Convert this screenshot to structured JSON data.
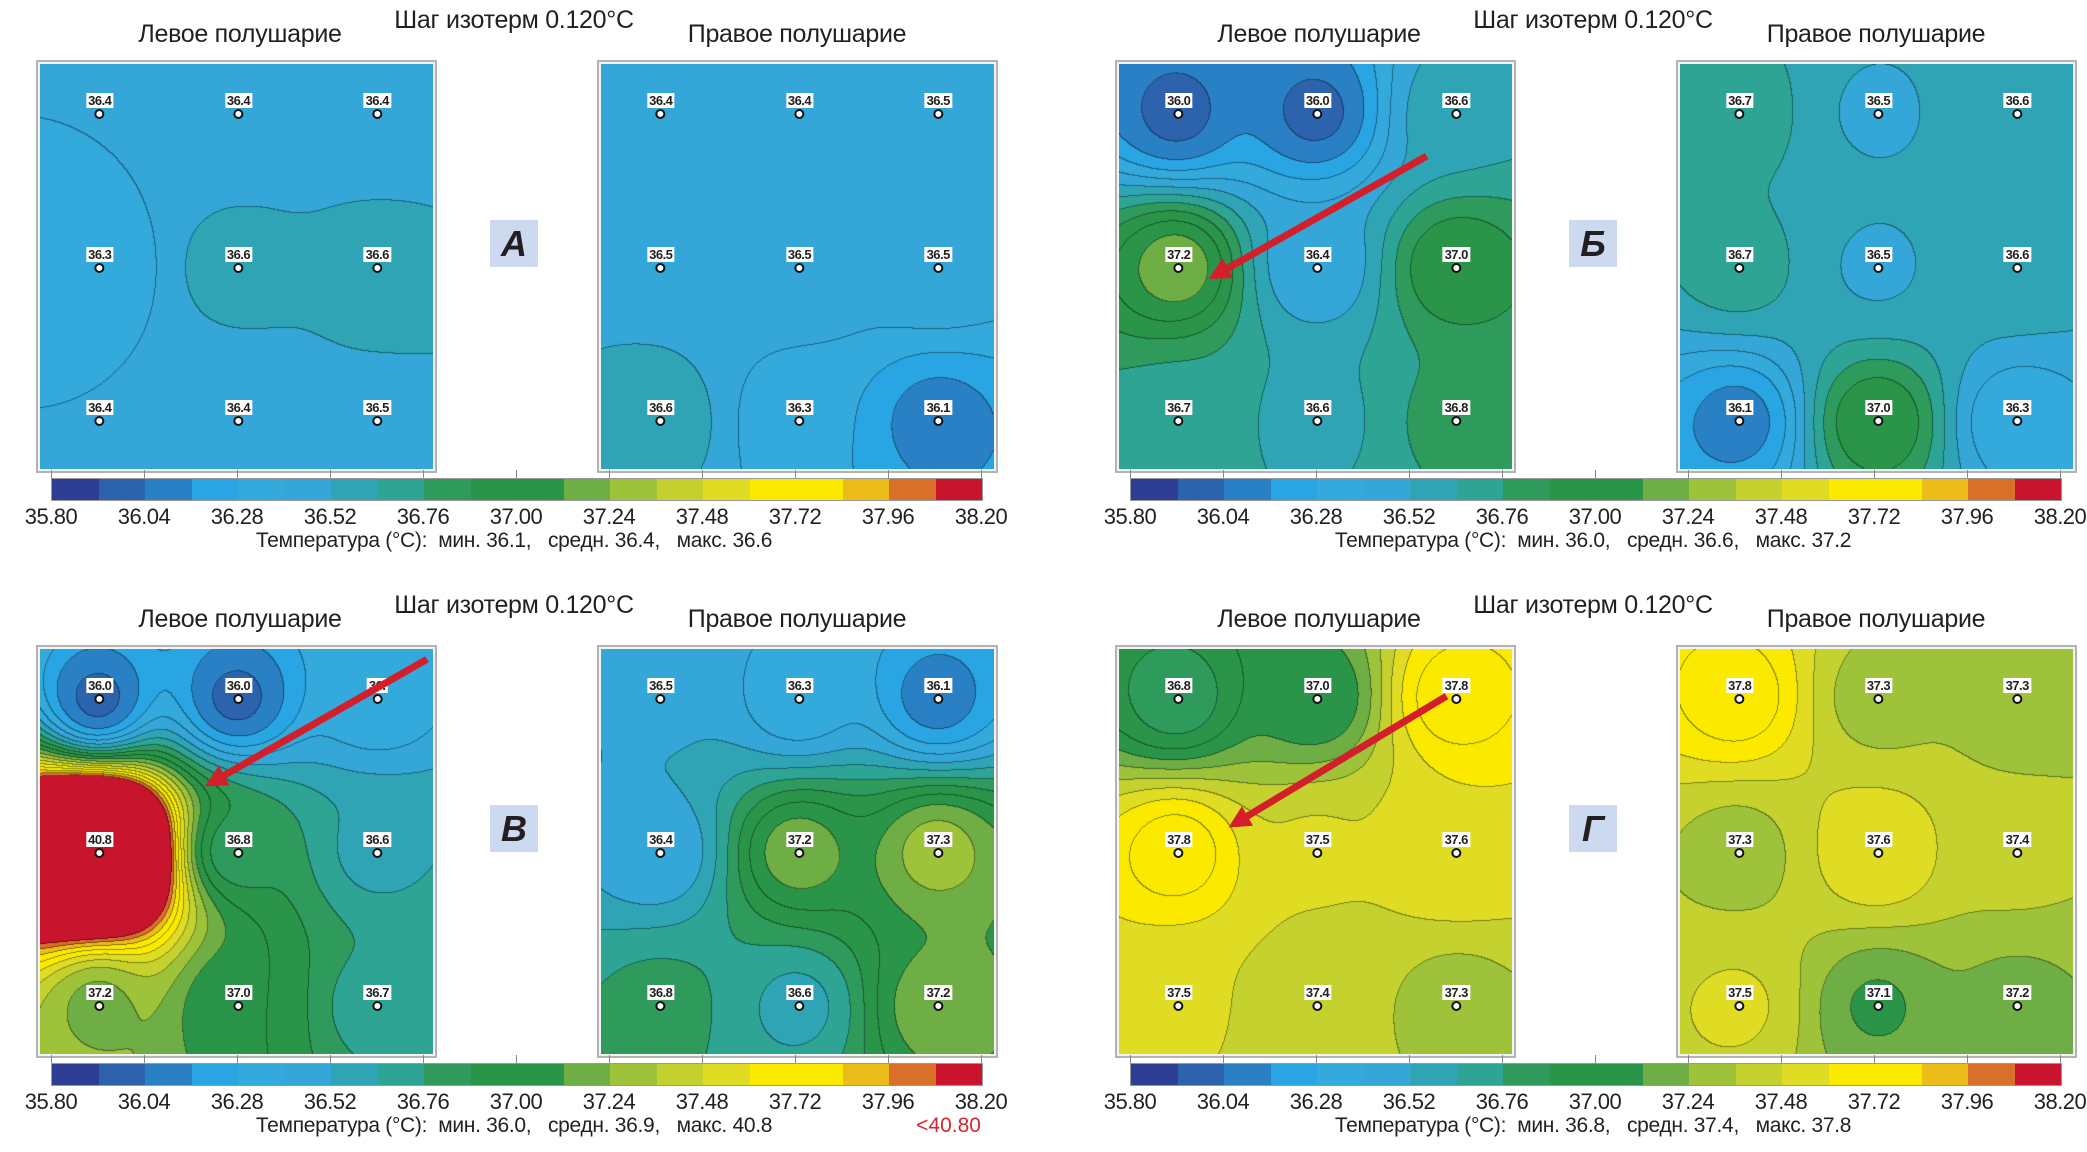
{
  "scale": {
    "min": 35.8,
    "max": 38.2,
    "step": 0.12,
    "colors": [
      "#2d3e93",
      "#2d62ad",
      "#2a80c4",
      "#28a5e2",
      "#33a9dc",
      "#34a6d8",
      "#2ea4b4",
      "#2ea495",
      "#2e9a5c",
      "#2a9548",
      "#2a9548",
      "#6fae44",
      "#9fc23b",
      "#c5d12f",
      "#e0dc24",
      "#fbe900",
      "#fbe900",
      "#ecbc19",
      "#d9702a",
      "#c8142d"
    ],
    "ticks": [
      "35.80",
      "36.04",
      "36.28",
      "36.52",
      "36.76",
      "37.00",
      "37.24",
      "37.48",
      "37.72",
      "37.96",
      "38.20"
    ]
  },
  "quadrants": [
    {
      "letter": "А",
      "title_left": "Левое полушарие",
      "step": "Шаг изотерм 0.120°C",
      "title_right": "Правое полушарие",
      "left": [
        [
          "36.4",
          "36.4",
          "36.4"
        ],
        [
          "36.3",
          "36.6",
          "36.6"
        ],
        [
          "36.4",
          "36.4",
          "36.5"
        ]
      ],
      "right": [
        [
          "36.4",
          "36.4",
          "36.5"
        ],
        [
          "36.5",
          "36.5",
          "36.5"
        ],
        [
          "36.6",
          "36.3",
          "36.1"
        ]
      ],
      "summary": "Температура (°C):  мин. 36.1,   средн. 36.4,   макс. 36.6"
    },
    {
      "letter": "Б",
      "title_left": "Левое полушарие",
      "step": "Шаг изотерм 0.120°C",
      "title_right": "Правое полушарие",
      "left": [
        [
          "36.0",
          "36.0",
          "36.6"
        ],
        [
          "37.2",
          "36.4",
          "37.0"
        ],
        [
          "36.7",
          "36.6",
          "36.8"
        ]
      ],
      "right": [
        [
          "36.7",
          "36.5",
          "36.6"
        ],
        [
          "36.7",
          "36.5",
          "36.6"
        ],
        [
          "36.1",
          "37.0",
          "36.3"
        ]
      ],
      "summary": "Температура (°C):  мин. 36.0,   средн. 36.6,   макс. 37.2"
    },
    {
      "letter": "В",
      "title_left": "Левое полушарие",
      "step": "Шаг изотерм 0.120°C",
      "title_right": "Правое полушарие",
      "left": [
        [
          "36.0",
          "36.0",
          "36."
        ],
        [
          "40.8",
          "36.8",
          "36.6"
        ],
        [
          "37.2",
          "37.0",
          "36.7"
        ]
      ],
      "right": [
        [
          "36.5",
          "36.3",
          "36.1"
        ],
        [
          "36.4",
          "37.2",
          "37.3"
        ],
        [
          "36.8",
          "36.6",
          "37.2"
        ]
      ],
      "summary": "Температура (°C):  мин. 36.0,   средн. 36.9,   макс. 40.8",
      "overflow": "<40.80"
    },
    {
      "letter": "Г",
      "title_left": "Левое полушарие",
      "step": "Шаг изотерм 0.120°C",
      "title_right": "Правое полушарие",
      "left": [
        [
          "36.8",
          "37.0",
          "37.8"
        ],
        [
          "37.8",
          "37.5",
          "37.6"
        ],
        [
          "37.5",
          "37.4",
          "37.3"
        ]
      ],
      "right": [
        [
          "37.8",
          "37.3",
          "37.3"
        ],
        [
          "37.3",
          "37.6",
          "37.4"
        ],
        [
          "37.5",
          "37.1",
          "37.2"
        ]
      ],
      "summary": "Температура (°C):  мин. 36.8,   средн. 37.4,   макс. 37.8"
    }
  ]
}
